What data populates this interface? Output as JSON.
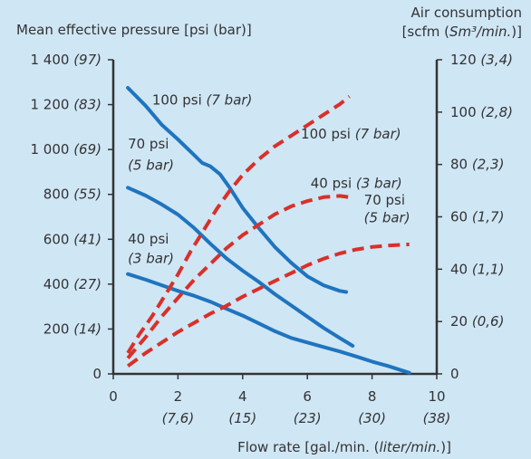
{
  "chart_data": {
    "type": "line",
    "title": "",
    "ylabel_left": "Mean effective pressure [psi (bar)]",
    "ylabel_right_line1": "Air consumption",
    "ylabel_right_line2": "[scfm (Sm³/min.)]",
    "xlabel": "Flow rate [gal./min. (liter/min.)]",
    "xlim": [
      0,
      10
    ],
    "ylim_left": [
      0,
      1400
    ],
    "ylim_right": [
      0,
      120
    ],
    "x_ticks": [
      {
        "value": 0,
        "main": "0",
        "sub": ""
      },
      {
        "value": 2,
        "main": "2",
        "sub": "(7,6)"
      },
      {
        "value": 4,
        "main": "4",
        "sub": "(15)"
      },
      {
        "value": 6,
        "main": "6",
        "sub": "(23)"
      },
      {
        "value": 8,
        "main": "8",
        "sub": "(30)"
      },
      {
        "value": 10,
        "main": "10",
        "sub": "(38)"
      }
    ],
    "y_left_ticks": [
      {
        "value": 0,
        "main": "0",
        "sub": ""
      },
      {
        "value": 200,
        "main": "200",
        "sub": "(14)"
      },
      {
        "value": 400,
        "main": "400",
        "sub": "(27)"
      },
      {
        "value": 600,
        "main": "600",
        "sub": "(41)"
      },
      {
        "value": 800,
        "main": "800",
        "sub": "(55)"
      },
      {
        "value": 1000,
        "main": "1 000",
        "sub": "(69)"
      },
      {
        "value": 1200,
        "main": "1 200",
        "sub": "(83)"
      },
      {
        "value": 1400,
        "main": "1 400",
        "sub": "(97)"
      }
    ],
    "y_right_ticks": [
      {
        "value": 0,
        "main": "0",
        "sub": ""
      },
      {
        "value": 20,
        "main": "20",
        "sub": "(0,6)"
      },
      {
        "value": 40,
        "main": "40",
        "sub": "(1,1)"
      },
      {
        "value": 60,
        "main": "60",
        "sub": "(1,7)"
      },
      {
        "value": 80,
        "main": "80",
        "sub": "(2,3)"
      },
      {
        "value": 100,
        "main": "100",
        "sub": "(2,8)"
      },
      {
        "value": 120,
        "main": "120",
        "sub": "(3,4)"
      }
    ],
    "series": [
      {
        "axis": "left",
        "style": "solid",
        "color": "#1f74bf",
        "x": [
          0.45,
          1.0,
          1.5,
          2.0,
          2.5,
          2.75,
          3.0,
          3.3,
          3.6,
          4.0,
          4.5,
          5.0,
          5.5,
          6.0,
          6.5,
          7.0,
          7.2
        ],
        "y": [
          1275,
          1195,
          1110,
          1045,
          975,
          940,
          925,
          890,
          830,
          740,
          650,
          565,
          495,
          435,
          395,
          370,
          365
        ]
      },
      {
        "axis": "left",
        "style": "solid",
        "color": "#1f74bf",
        "x": [
          0.45,
          1.0,
          1.5,
          2.0,
          2.5,
          3.0,
          3.5,
          4.0,
          4.5,
          5.0,
          5.5,
          6.0,
          6.5,
          7.0,
          7.4
        ],
        "y": [
          830,
          795,
          755,
          710,
          650,
          580,
          515,
          460,
          410,
          355,
          305,
          255,
          205,
          160,
          125
        ]
      },
      {
        "axis": "left",
        "style": "solid",
        "color": "#1f74bf",
        "x": [
          0.45,
          1.0,
          1.5,
          2.0,
          2.5,
          3.0,
          3.5,
          4.0,
          4.5,
          5.0,
          5.5,
          6.0,
          6.5,
          7.0,
          7.5,
          8.0,
          8.5,
          9.15
        ],
        "y": [
          445,
          420,
          395,
          370,
          348,
          322,
          290,
          260,
          225,
          190,
          160,
          140,
          120,
          100,
          78,
          55,
          35,
          5
        ]
      },
      {
        "axis": "right",
        "style": "dashed",
        "color": "#d9302a",
        "x": [
          0.45,
          0.8,
          1.2,
          1.6,
          2.0,
          2.4,
          2.8,
          3.2,
          3.6,
          4.0,
          4.5,
          5.0,
          5.5,
          6.0,
          6.5,
          7.0,
          7.3
        ],
        "y": [
          8,
          15,
          22,
          30,
          38,
          47,
          55,
          63,
          70,
          76,
          82,
          87,
          91,
          95,
          99,
          103,
          106
        ]
      },
      {
        "axis": "right",
        "style": "dashed",
        "color": "#d9302a",
        "x": [
          0.45,
          1.0,
          1.5,
          2.0,
          2.5,
          3.0,
          3.5,
          4.0,
          4.5,
          5.0,
          5.5,
          6.0,
          6.5,
          7.0,
          7.3
        ],
        "y": [
          6,
          14,
          22,
          29,
          36,
          42,
          48,
          53,
          57,
          61,
          64,
          66,
          67.5,
          68,
          67.5
        ]
      },
      {
        "axis": "right",
        "style": "dashed",
        "color": "#d9302a",
        "x": [
          0.45,
          1.0,
          1.5,
          2.0,
          2.5,
          3.0,
          3.5,
          4.0,
          4.5,
          5.0,
          5.5,
          6.0,
          6.5,
          7.0,
          7.5,
          8.0,
          8.5,
          9.15
        ],
        "y": [
          3,
          8,
          12,
          16,
          19.5,
          23,
          26,
          29.5,
          32.5,
          35.5,
          38.5,
          41.5,
          44,
          46,
          47.5,
          48.5,
          49,
          49.5
        ]
      }
    ],
    "annotations": [
      {
        "text": "100 psi",
        "italic": "(7 bar)",
        "x": 1.2,
        "y_left": 1200
      },
      {
        "text": "70 psi",
        "italic": "",
        "x": 0.45,
        "y_left": 1005
      },
      {
        "text": "",
        "italic": "(5 bar)",
        "x": 0.45,
        "y_left": 910
      },
      {
        "text": "40 psi",
        "italic": "",
        "x": 0.45,
        "y_left": 580
      },
      {
        "text": "",
        "italic": "(3 bar)",
        "x": 0.45,
        "y_left": 495
      },
      {
        "text": "100 psi",
        "italic": "(7 bar)",
        "x": 5.8,
        "y_left": 1050
      },
      {
        "text": "40 psi",
        "italic": "(3 bar)",
        "x": 6.1,
        "y_left": 830
      },
      {
        "text": "70 psi",
        "italic": "",
        "x": 7.75,
        "y_left": 755
      },
      {
        "text": "",
        "italic": "(5 bar)",
        "x": 7.75,
        "y_left": 675
      }
    ]
  }
}
